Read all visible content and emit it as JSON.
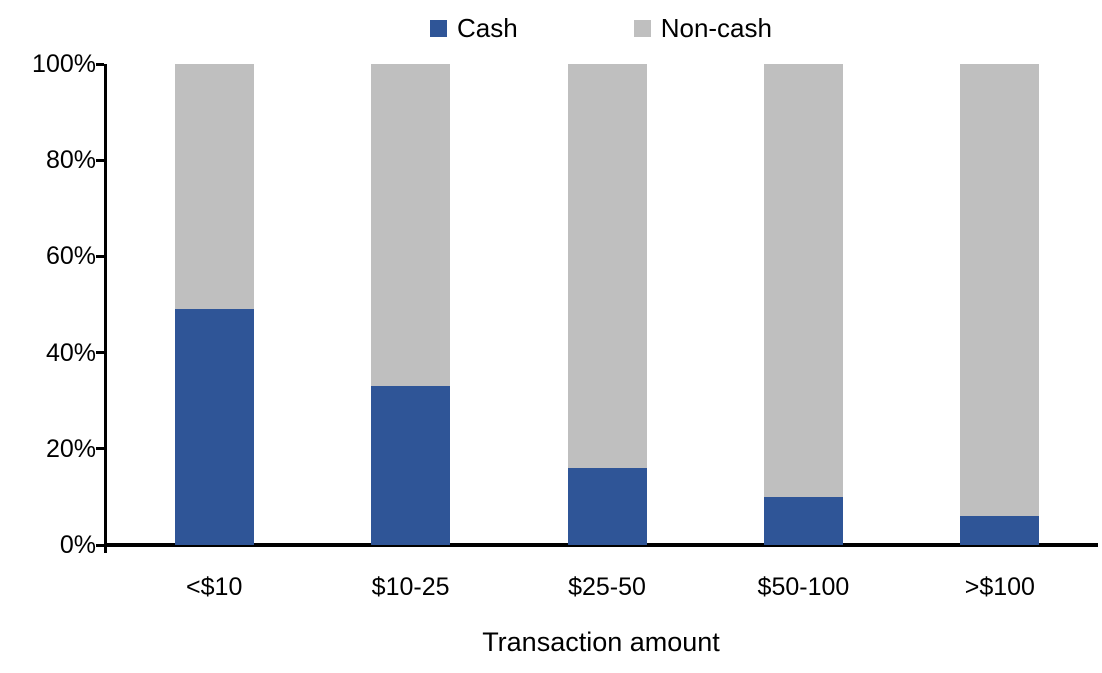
{
  "chart_data": {
    "type": "bar",
    "variant": "stacked-100-percent-column",
    "title": "",
    "xlabel": "Transaction amount",
    "ylabel": "",
    "categories": [
      "<$10",
      "$10-25",
      "$25-50",
      "$50-100",
      ">$100"
    ],
    "series": [
      {
        "name": "Cash",
        "color": "#2F5597",
        "values": [
          49,
          33,
          16,
          10,
          6
        ]
      },
      {
        "name": "Non-cash",
        "color": "#BFBFBF",
        "values": [
          51,
          67,
          84,
          90,
          94
        ]
      }
    ],
    "ylim": [
      0,
      100
    ],
    "ytick_labels": [
      "0%",
      "20%",
      "40%",
      "60%",
      "80%",
      "100%"
    ],
    "grid": false,
    "legend_position": "top-center",
    "axis_color": "#000000",
    "text_color": "#000000"
  }
}
